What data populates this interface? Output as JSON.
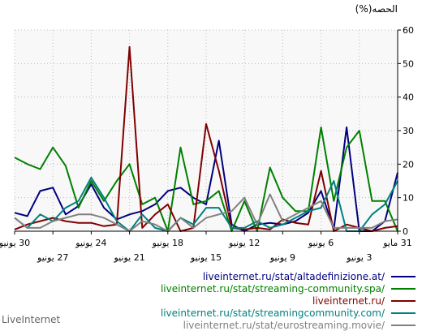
{
  "chart_data": {
    "type": "line",
    "ylabel": "الحصه(%)",
    "ylim": [
      0,
      60
    ],
    "yticks": [
      0,
      10,
      20,
      30,
      40,
      50,
      60
    ],
    "grid": true,
    "legend_position": "bottom-right",
    "xtick_labels_upper": [
      "31 مايو",
      "6 يونيو",
      "12 يونيو",
      "18 يونيو",
      "24 يونيو",
      "30 يونيو"
    ],
    "xtick_labels_lower": [
      "3 يونيو",
      "9 يونيو",
      "15 يونيو",
      "21 يونيو",
      "27 يونيو"
    ],
    "x_dates": [
      "30 يونيو",
      "29 يونيو",
      "28 يونيو",
      "27 يونيو",
      "26 يونيو",
      "25 يونيو",
      "24 يونيو",
      "23 يونيو",
      "22 يونيو",
      "21 يونيو",
      "20 يونيو",
      "19 يونيو",
      "18 يونيو",
      "17 يونيو",
      "16 يونيو",
      "15 يونيو",
      "14 يونيو",
      "13 يونيو",
      "12 يونيو",
      "11 يونيو",
      "10 يونيو",
      "9 يونيو",
      "8 يونيو",
      "7 يونيو",
      "6 يونيو",
      "5 يونيو",
      "4 يونيو",
      "3 يونيو",
      "2 يونيو",
      "1 يونيو",
      "31 مايو"
    ],
    "series": [
      {
        "name": "liveinternet.ru/stat/altadefinizione.at/",
        "color": "#000080",
        "values": [
          5.5,
          4.5,
          12,
          13,
          5,
          7.5,
          14,
          7,
          3.5,
          5,
          6,
          8,
          12,
          13,
          10,
          8,
          27,
          2,
          0,
          2,
          2.5,
          2,
          3,
          5.5,
          12,
          0.5,
          31,
          0,
          0,
          3,
          17.5
        ]
      },
      {
        "name": "liveinternet.ru/stat/streaming-community.spa/",
        "color": "#008000",
        "values": [
          22,
          20,
          18.5,
          25,
          19.5,
          7,
          15,
          9,
          15,
          20,
          8,
          10,
          0,
          25,
          8,
          9,
          12,
          0,
          9,
          0,
          19,
          10,
          6,
          6,
          31,
          9,
          25,
          30,
          9,
          9,
          0
        ]
      },
      {
        "name": "liveinternet.ru/",
        "color": "#800000",
        "values": [
          0.5,
          2,
          3,
          4,
          3,
          2.5,
          2.5,
          1.5,
          2,
          55,
          1,
          5,
          8,
          0,
          1,
          32,
          18,
          1,
          0.5,
          1,
          0.5,
          3.5,
          2.5,
          2,
          18,
          0,
          2,
          1,
          0,
          1,
          1.5
        ]
      },
      {
        "name": "liveinternet.ru/stat/streamingcommunity.com/",
        "color": "#008080",
        "values": [
          4,
          1,
          5,
          3,
          7,
          9,
          16,
          10,
          3,
          0,
          5,
          1,
          0,
          4,
          2,
          7,
          7,
          1,
          1,
          3,
          1,
          2,
          4,
          6,
          7,
          15,
          0,
          0,
          5,
          8,
          15
        ]
      },
      {
        "name": "liveinternet.ru/stat/eurostreaming.movie/",
        "color": "#808080",
        "values": [
          4,
          1,
          1,
          3,
          4,
          5,
          5,
          4,
          2,
          0,
          3,
          2,
          0,
          4,
          1,
          4,
          5,
          6,
          10,
          2,
          11,
          3,
          5,
          7,
          9,
          1,
          1,
          1,
          1,
          3,
          3.5
        ]
      }
    ]
  },
  "brand": "LiveInternet"
}
